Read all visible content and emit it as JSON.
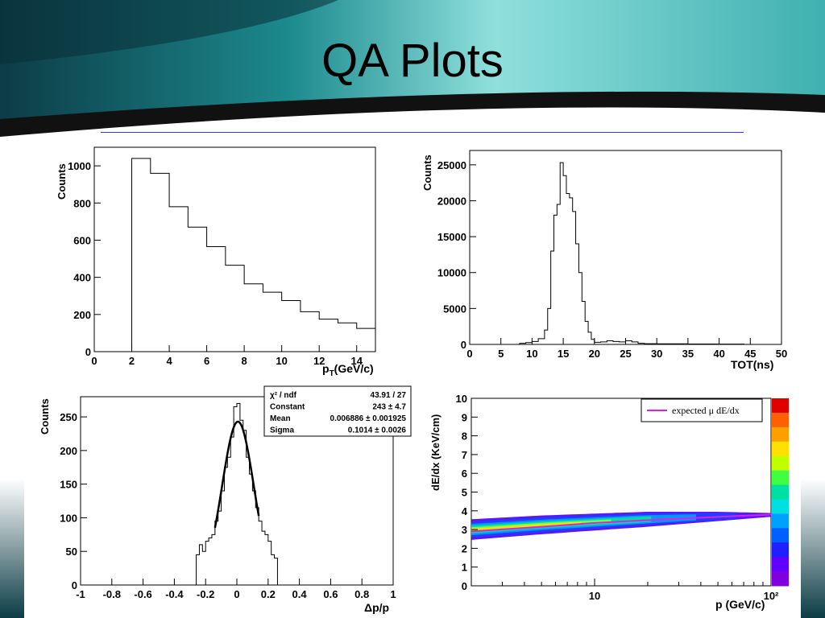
{
  "slide": {
    "title": "QA Plots"
  },
  "colors": {
    "header_dark": "#0c3c46",
    "header_teal": "#2aa6a6",
    "header_light": "#8fe0dc",
    "rule": "#3a3ac8",
    "fit": "#000000",
    "expected_line": "#e020e0"
  },
  "chart_data": [
    {
      "type": "bar",
      "style": "histogram-step",
      "xlabel": "p",
      "xlabel_sub": "T",
      "xlabel_unit": "(GeV/c)",
      "ylabel": "Counts",
      "xlim": [
        0,
        15
      ],
      "ylim": [
        0,
        1100
      ],
      "x_ticks": [
        "0",
        "2",
        "4",
        "6",
        "8",
        "10",
        "12",
        "14"
      ],
      "y_ticks": [
        "0",
        "200",
        "400",
        "600",
        "800",
        "1000"
      ],
      "bin_edges": [
        2,
        3,
        4,
        5,
        6,
        7,
        8,
        9,
        10,
        11,
        12,
        13,
        14,
        15
      ],
      "values": [
        1040,
        960,
        780,
        670,
        565,
        465,
        365,
        320,
        275,
        215,
        175,
        155,
        125
      ]
    },
    {
      "type": "bar",
      "style": "histogram-step",
      "xlabel": "TOT(ns)",
      "ylabel": "Counts",
      "xlim": [
        0,
        50
      ],
      "ylim": [
        0,
        27000
      ],
      "x_ticks": [
        "0",
        "5",
        "10",
        "15",
        "20",
        "25",
        "30",
        "35",
        "40",
        "45",
        "50"
      ],
      "y_ticks": [
        "0",
        "5000",
        "10000",
        "15000",
        "20000",
        "25000"
      ],
      "bin_edges": [
        0,
        8,
        9,
        10,
        11,
        12,
        12.5,
        13,
        13.5,
        14,
        14.5,
        15,
        15.5,
        16,
        16.5,
        17,
        17.5,
        18,
        18.5,
        19,
        19.5,
        20,
        21,
        22,
        23,
        24,
        25,
        26,
        27,
        28,
        30,
        35,
        40,
        44
      ],
      "values": [
        0,
        150,
        250,
        400,
        800,
        2000,
        5000,
        13000,
        18000,
        19500,
        25300,
        23500,
        21000,
        20400,
        18500,
        14000,
        10000,
        6000,
        3200,
        1700,
        700,
        300,
        350,
        500,
        400,
        350,
        500,
        350,
        150,
        100,
        80,
        50,
        40
      ]
    },
    {
      "type": "bar",
      "style": "histogram-step-with-fit",
      "xlabel": "Δp/p",
      "ylabel": "Counts",
      "xlim": [
        -1,
        1
      ],
      "ylim": [
        0,
        280
      ],
      "x_ticks": [
        "-1",
        "-0.8",
        "-0.6",
        "-0.4",
        "-0.2",
        "0",
        "0.2",
        "0.4",
        "0.6",
        "0.8",
        "1"
      ],
      "y_ticks": [
        "0",
        "50",
        "100",
        "150",
        "200",
        "250"
      ],
      "bin_edges": [
        -0.26,
        -0.24,
        -0.22,
        -0.2,
        -0.18,
        -0.16,
        -0.14,
        -0.12,
        -0.1,
        -0.08,
        -0.06,
        -0.04,
        -0.02,
        0,
        0.02,
        0.04,
        0.06,
        0.08,
        0.1,
        0.12,
        0.14,
        0.16,
        0.18,
        0.2,
        0.22,
        0.24,
        0.26
      ],
      "values": [
        45,
        60,
        50,
        65,
        70,
        75,
        95,
        110,
        140,
        175,
        190,
        220,
        265,
        270,
        245,
        230,
        190,
        165,
        140,
        115,
        95,
        80,
        75,
        65,
        45,
        40
      ],
      "fit": {
        "constant": 243,
        "mean": 0.006886,
        "sigma": 0.1014,
        "range": [
          -0.14,
          0.14
        ]
      },
      "stats": [
        {
          "label": "χ² / ndf",
          "value": "43.91 / 27"
        },
        {
          "label": "Constant",
          "value": "243 ± 4.7"
        },
        {
          "label": "Mean",
          "value": "0.006886 ± 0.001925"
        },
        {
          "label": "Sigma",
          "value": "0.1014 ± 0.0026"
        }
      ]
    },
    {
      "type": "heatmap",
      "xlabel": "p (GeV/c)",
      "ylabel": "dE/dx (KeV/cm)",
      "x_scale": "log",
      "xlim": [
        2,
        100
      ],
      "ylim": [
        0,
        10
      ],
      "x_ticks": [
        "10",
        "10²"
      ],
      "y_ticks": [
        "0",
        "1",
        "2",
        "3",
        "4",
        "5",
        "6",
        "7",
        "8",
        "9",
        "10"
      ],
      "band": [
        {
          "p": 2,
          "center": 3.0,
          "width": 0.55
        },
        {
          "p": 5,
          "center": 3.25,
          "width": 0.5
        },
        {
          "p": 10,
          "center": 3.4,
          "width": 0.45
        },
        {
          "p": 20,
          "center": 3.55,
          "width": 0.4
        },
        {
          "p": 50,
          "center": 3.7,
          "width": 0.25
        },
        {
          "p": 100,
          "center": 3.78,
          "width": 0.1
        }
      ],
      "expected_curve": {
        "x": [
          2,
          5,
          10,
          20,
          50,
          100
        ],
        "y": [
          2.9,
          3.15,
          3.35,
          3.5,
          3.68,
          3.8
        ]
      },
      "legend": "expected μ dE/dx",
      "colorbar": [
        "#e00000",
        "#ff6000",
        "#ffa000",
        "#ffe000",
        "#c0ff00",
        "#40ff40",
        "#00e0a0",
        "#00e0e0",
        "#00a0ff",
        "#0060ff",
        "#2020ff",
        "#6000ff",
        "#8000e0"
      ]
    }
  ]
}
